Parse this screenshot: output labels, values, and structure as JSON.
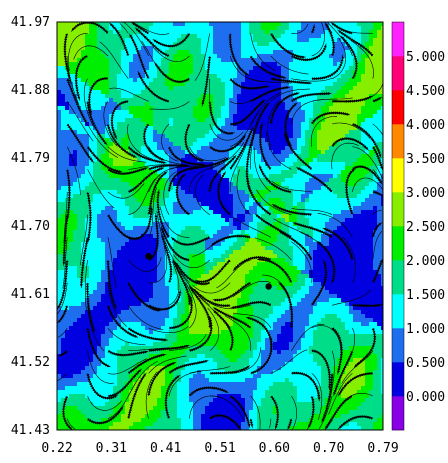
{
  "chart_data": {
    "type": "heatmap",
    "title": "",
    "xlabel": "",
    "ylabel": "",
    "xlim": [
      0.22,
      0.79
    ],
    "ylim": [
      41.43,
      41.97
    ],
    "x_ticks": [
      "0.22",
      "0.31",
      "0.41",
      "0.51",
      "0.60",
      "0.70",
      "0.79"
    ],
    "y_ticks": [
      "41.97",
      "41.88",
      "41.79",
      "41.70",
      "41.61",
      "41.52",
      "41.43"
    ],
    "overlay": "streamlines",
    "markers": [
      {
        "x": 0.38,
        "y": 41.66
      },
      {
        "x": 0.59,
        "y": 41.62
      }
    ],
    "colorbar": {
      "levels": [
        "0.000",
        "0.500",
        "1.000",
        "1.500",
        "2.000",
        "2.500",
        "3.000",
        "3.500",
        "4.000",
        "4.500",
        "5.000"
      ],
      "colors": [
        "#8a00e6",
        "#0000e0",
        "#1e6ef0",
        "#00ffff",
        "#00dd88",
        "#00ee00",
        "#88ee00",
        "#ffff00",
        "#ff8800",
        "#ff0000",
        "#ff0077",
        "#ff22ff"
      ]
    }
  }
}
